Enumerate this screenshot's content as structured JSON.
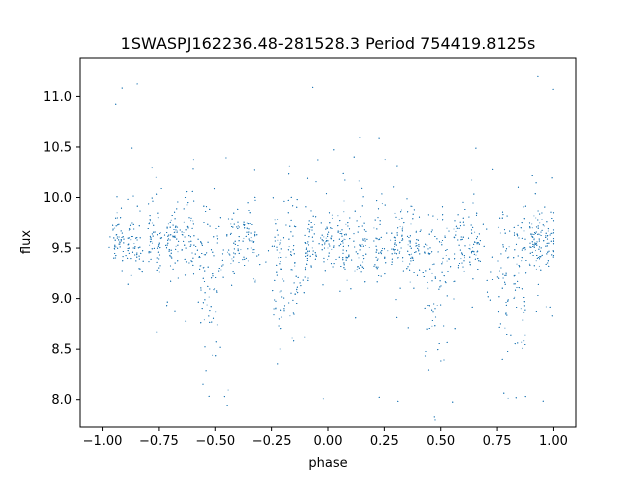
{
  "chart_data": {
    "type": "scatter",
    "title": "1SWASPJ162236.48-281528.3 Period 754419.8125s",
    "xlabel": "phase",
    "ylabel": "flux",
    "xlim": [
      -1.1,
      1.1
    ],
    "ylim": [
      7.73,
      11.38
    ],
    "xticks": [
      -1.0,
      -0.75,
      -0.5,
      -0.25,
      0.0,
      0.25,
      0.5,
      0.75,
      1.0
    ],
    "xtick_labels": [
      "−1.00",
      "−0.75",
      "−0.50",
      "−0.25",
      "0.00",
      "0.25",
      "0.50",
      "0.75",
      "1.00"
    ],
    "yticks": [
      8.0,
      8.5,
      9.0,
      9.5,
      10.0,
      10.5,
      11.0
    ],
    "ytick_labels": [
      "8.0",
      "8.5",
      "9.0",
      "9.5",
      "10.0",
      "10.5",
      "11.0"
    ],
    "grid": false,
    "marker_color": "#1f77b4",
    "series": [
      {
        "x_range": [
          -1.0,
          1.0
        ],
        "baseline": 9.55,
        "point_count": 6000,
        "note_period_repeat": 1.0,
        "dense_clusters_x": [
          -0.93,
          -0.86,
          -0.77,
          -0.69,
          -0.62,
          -0.55,
          -0.49,
          -0.42,
          -0.35,
          -0.22,
          -0.15,
          -0.08,
          0.0,
          0.07,
          0.14,
          0.23,
          0.31,
          0.38,
          0.45,
          0.51,
          0.58,
          0.65,
          0.78,
          0.85,
          0.92,
          0.99
        ],
        "deep_dip_x": [
          -0.52,
          -0.25,
          -0.17,
          0.48,
          0.75,
          0.83
        ]
      }
    ]
  }
}
